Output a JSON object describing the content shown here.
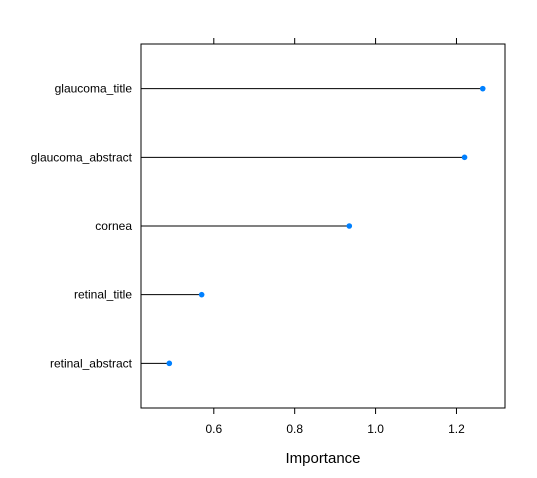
{
  "chart_data": {
    "type": "dotplot",
    "xlabel": "Importance",
    "ylabel": "",
    "xlim": [
      0.42,
      1.32
    ],
    "x_ticks": [
      0.6,
      0.8,
      1.0,
      1.2
    ],
    "x_tick_labels": [
      "0.6",
      "0.8",
      "1.0",
      "1.2"
    ],
    "categories": [
      "glaucoma_title",
      "glaucoma_abstract",
      "cornea",
      "retinal_title",
      "retinal_abstract"
    ],
    "values": [
      1.265,
      1.22,
      0.935,
      0.57,
      0.49
    ],
    "point_color": "#0080FF",
    "grid": false
  }
}
